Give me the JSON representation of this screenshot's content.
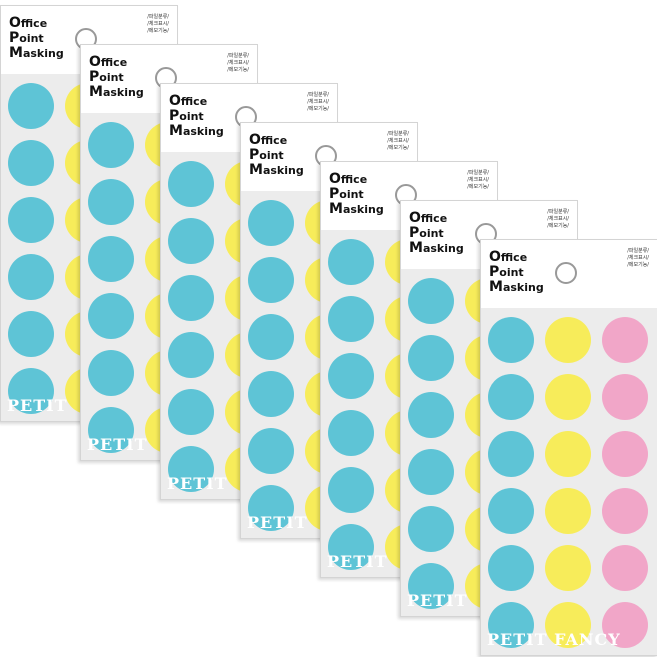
{
  "sheets": [
    {
      "title": [
        "Office",
        "Point",
        "Masking"
      ],
      "tags": [
        "/파일분류/",
        "/체크표시/",
        "/메모기능/"
      ],
      "footer": "PETIT"
    },
    {
      "title": [
        "Office",
        "Point",
        "Masking"
      ],
      "tags": [
        "/파일분류/",
        "/체크표시/",
        "/메모기능/"
      ],
      "footer": "PETIT"
    },
    {
      "title": [
        "Office",
        "Point",
        "Masking"
      ],
      "tags": [
        "/파일분류/",
        "/체크표시/",
        "/메모기능/"
      ],
      "footer": "PETIT"
    },
    {
      "title": [
        "Office",
        "Point",
        "Masking"
      ],
      "tags": [
        "/파일분류/",
        "/체크표시/",
        "/메모기능/"
      ],
      "footer": "PETIT"
    },
    {
      "title": [
        "Office",
        "Point",
        "Masking"
      ],
      "tags": [
        "/파일분류/",
        "/체크표시/",
        "/메모기능/"
      ],
      "footer": "PETIT"
    },
    {
      "title": [
        "Office",
        "Point",
        "Masking"
      ],
      "tags": [
        "/파일분류/",
        "/체크표시/",
        "/메모기능/"
      ],
      "footer": "PETIT"
    },
    {
      "title": [
        "Office",
        "Point",
        "Masking"
      ],
      "tags": [
        "/파일분류/",
        "/체크표시/",
        "/메모기능/"
      ],
      "footer": "PETIT FANCY"
    }
  ]
}
